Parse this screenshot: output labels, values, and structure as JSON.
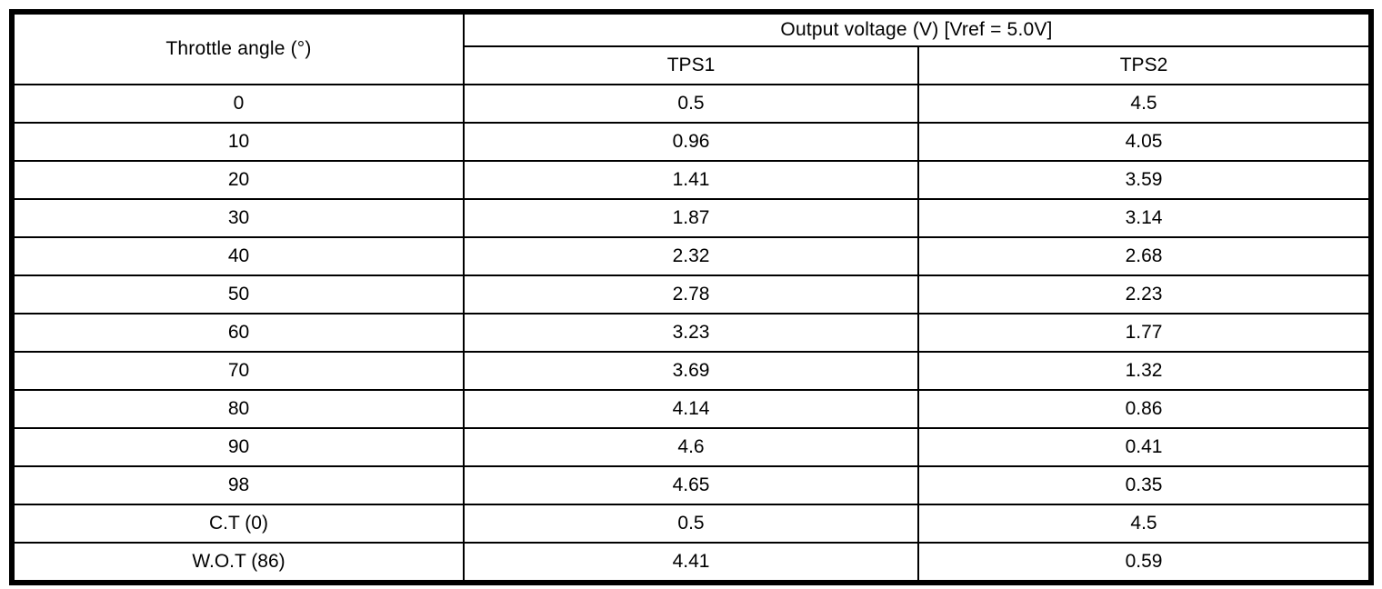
{
  "table": {
    "throttle_header": "Throttle angle (°)",
    "output_header": "Output voltage (V) [Vref = 5.0V]",
    "columns": [
      "TPS1",
      "TPS2"
    ],
    "rows": [
      {
        "angle": "0",
        "tps1": "0.5",
        "tps2": "4.5"
      },
      {
        "angle": "10",
        "tps1": "0.96",
        "tps2": "4.05"
      },
      {
        "angle": "20",
        "tps1": "1.41",
        "tps2": "3.59"
      },
      {
        "angle": "30",
        "tps1": "1.87",
        "tps2": "3.14"
      },
      {
        "angle": "40",
        "tps1": "2.32",
        "tps2": "2.68"
      },
      {
        "angle": "50",
        "tps1": "2.78",
        "tps2": "2.23"
      },
      {
        "angle": "60",
        "tps1": "3.23",
        "tps2": "1.77"
      },
      {
        "angle": "70",
        "tps1": "3.69",
        "tps2": "1.32"
      },
      {
        "angle": "80",
        "tps1": "4.14",
        "tps2": "0.86"
      },
      {
        "angle": "90",
        "tps1": "4.6",
        "tps2": "0.41"
      },
      {
        "angle": "98",
        "tps1": "4.65",
        "tps2": "0.35"
      },
      {
        "angle": "C.T (0)",
        "tps1": "0.5",
        "tps2": "4.5"
      },
      {
        "angle": "W.O.T (86)",
        "tps1": "4.41",
        "tps2": "0.59"
      }
    ],
    "colors": {
      "border": "#000000",
      "text": "#000000",
      "background": "#ffffff"
    }
  }
}
